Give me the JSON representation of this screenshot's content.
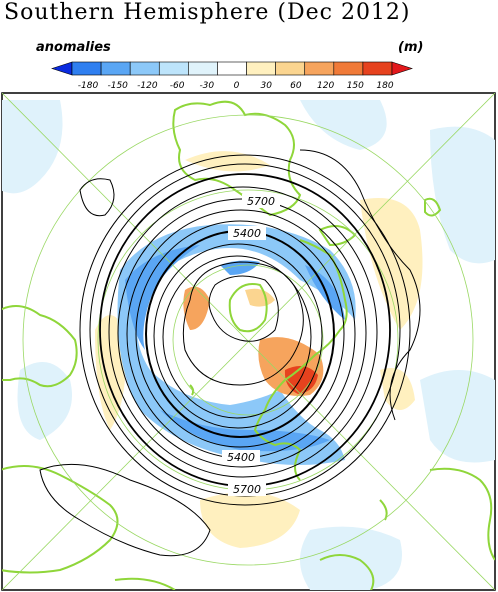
{
  "title": "Southern Hemisphere (Dec 2012)",
  "legend": {
    "left_label": "anomalies",
    "right_label": "(m)",
    "ticks": [
      "-180",
      "-150",
      "-120",
      "-60",
      "-30",
      "0",
      "30",
      "60",
      "120",
      "150",
      "180"
    ],
    "colors": [
      "#0a2bdf",
      "#2f7ff0",
      "#5aa6f4",
      "#8cc8f8",
      "#bde4fb",
      "#e0f3fb",
      "#ffffff",
      "#fff0bf",
      "#fbd590",
      "#f6a45d",
      "#f07a38",
      "#e6421e",
      "#e2181c"
    ]
  },
  "contour_labels": [
    "5700",
    "5400",
    "5400",
    "5700"
  ],
  "colors": {
    "coast": "#8fd63a",
    "grid": "#9ad864"
  }
}
